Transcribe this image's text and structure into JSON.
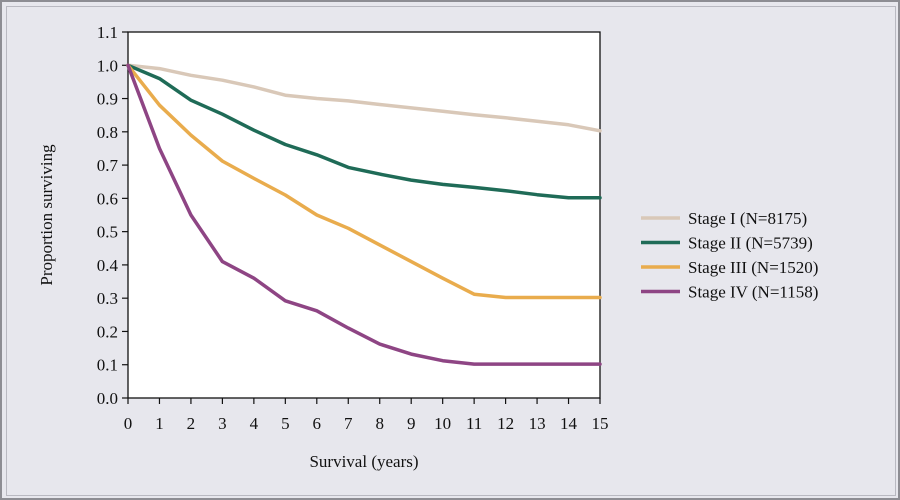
{
  "chart_data": {
    "type": "line",
    "title": "",
    "xlabel": "Survival (years)",
    "ylabel": "Proportion surviving",
    "xlim": [
      0,
      15
    ],
    "ylim": [
      0.0,
      1.1
    ],
    "x_ticks": [
      "0",
      "1",
      "2",
      "3",
      "4",
      "5",
      "6",
      "7",
      "8",
      "9",
      "10",
      "11",
      "12",
      "13",
      "14",
      "15"
    ],
    "y_ticks": [
      "0.0",
      "0.1",
      "0.2",
      "0.3",
      "0.4",
      "0.5",
      "0.6",
      "0.7",
      "0.8",
      "0.9",
      "1.0",
      "1.1"
    ],
    "grid": false,
    "legend_position": "right",
    "x": [
      0,
      1,
      2,
      3,
      4,
      5,
      6,
      7,
      8,
      9,
      10,
      11,
      12,
      13,
      14,
      15
    ],
    "series": [
      {
        "name": "Stage I (N=8175)",
        "color": "#d9c8b8",
        "values": [
          1.0,
          0.99,
          0.97,
          0.955,
          0.935,
          0.91,
          0.9,
          0.893,
          0.882,
          0.872,
          0.862,
          0.851,
          0.842,
          0.832,
          0.821,
          0.803
        ]
      },
      {
        "name": "Stage II (N=5739)",
        "color": "#1f6b57",
        "values": [
          1.0,
          0.96,
          0.895,
          0.853,
          0.805,
          0.762,
          0.731,
          0.693,
          0.673,
          0.655,
          0.642,
          0.633,
          0.623,
          0.611,
          0.602,
          0.602
        ]
      },
      {
        "name": "Stage III (N=1520)",
        "color": "#e9ac4d",
        "values": [
          1.0,
          0.88,
          0.79,
          0.712,
          0.66,
          0.61,
          0.55,
          0.51,
          0.46,
          0.41,
          0.36,
          0.312,
          0.302,
          0.302,
          0.302,
          0.302
        ]
      },
      {
        "name": "Stage IV (N=1158)",
        "color": "#8e4584",
        "values": [
          1.0,
          0.75,
          0.55,
          0.41,
          0.36,
          0.292,
          0.262,
          0.21,
          0.162,
          0.132,
          0.112,
          0.102,
          0.102,
          0.102,
          0.102,
          0.102
        ]
      }
    ]
  }
}
